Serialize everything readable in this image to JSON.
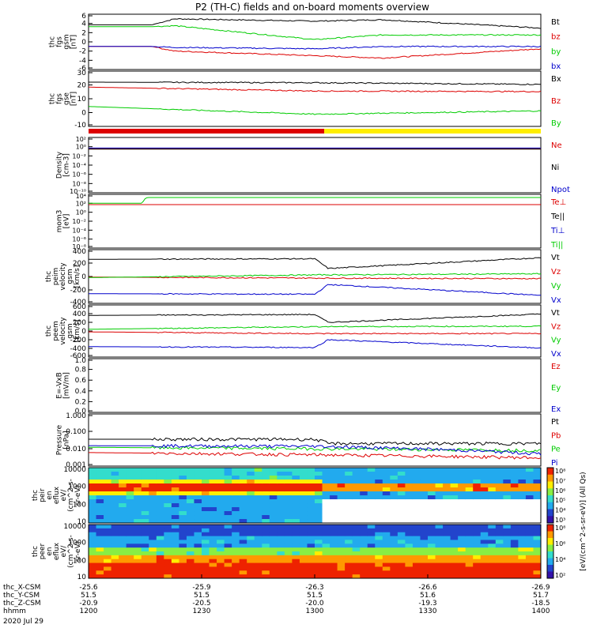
{
  "title": "P2 (TH-C) fields and on-board moments overview",
  "colors": {
    "black": "#000000",
    "red": "#dd0000",
    "green": "#00cc00",
    "blue": "#0000cc",
    "yellow": "#ffee00"
  },
  "chart_data": [
    {
      "type": "line",
      "id": "fgs_gsm",
      "ylabel": [
        "thc",
        "fgs",
        "gsm",
        "[nT]"
      ],
      "ylim": [
        -6,
        6
      ],
      "yticks": [
        6,
        4,
        2,
        0,
        -2,
        -4,
        -6
      ],
      "legend": [
        "Bt",
        "bz",
        "by",
        "bx"
      ],
      "series": [
        {
          "name": "Bt",
          "color": "black",
          "x": [
            1200,
            1228,
            1238,
            1300,
            1330,
            1400
          ],
          "values": [
            3.7,
            3.7,
            5.0,
            4.5,
            4.8,
            3.0
          ]
        },
        {
          "name": "bz",
          "color": "red",
          "x": [
            1200,
            1228,
            1238,
            1300,
            1330,
            1400
          ],
          "values": [
            -1,
            -1,
            -2,
            -3,
            -3.5,
            -1.5
          ]
        },
        {
          "name": "by",
          "color": "green",
          "x": [
            1200,
            1228,
            1238,
            1300,
            1330,
            1400
          ],
          "values": [
            3.3,
            3.3,
            3.5,
            0.5,
            1.5,
            1.5
          ]
        },
        {
          "name": "bx",
          "color": "blue",
          "x": [
            1200,
            1228,
            1238,
            1300,
            1330,
            1400
          ],
          "values": [
            -1,
            -1,
            -1.2,
            -1.5,
            -1,
            -1
          ]
        }
      ]
    },
    {
      "type": "line",
      "id": "fgs_gse",
      "ylabel": [
        "thc",
        "fgs",
        "gse",
        "[nT]"
      ],
      "ylim": [
        -20,
        30
      ],
      "yticks": [
        30,
        20,
        10,
        0,
        -10
      ],
      "legend": [
        "Bx",
        "Bz",
        "By"
      ],
      "series": [
        {
          "name": "Bx",
          "color": "black",
          "x": [
            1200,
            1300,
            1400
          ],
          "values": [
            20,
            19.5,
            18
          ]
        },
        {
          "name": "Bz",
          "color": "red",
          "x": [
            1200,
            1300,
            1400
          ],
          "values": [
            15.5,
            12,
            11.5
          ]
        },
        {
          "name": "By",
          "color": "green",
          "x": [
            1200,
            1300,
            1400
          ],
          "values": [
            -2,
            -9,
            -6
          ]
        }
      ]
    },
    {
      "type": "line",
      "id": "density",
      "ylabel": [
        "Density",
        "[cm-3]"
      ],
      "yscale": "log",
      "yticks": [
        "10²",
        "10⁰",
        "10⁻²",
        "10⁻⁴",
        "10⁻⁶",
        "10⁻⁸",
        "10⁻¹⁰"
      ],
      "legend": [
        "Ne",
        "Ni",
        "Npot"
      ],
      "series": [
        {
          "name": "Ne",
          "color": "red",
          "x": [
            1200,
            1400
          ],
          "values": [
            0.4,
            0.4
          ]
        },
        {
          "name": "Ni",
          "color": "black",
          "x": [
            1200,
            1400
          ],
          "values": [
            0.3,
            0.3
          ]
        },
        {
          "name": "Npot",
          "color": "blue",
          "x": [
            1200,
            1400
          ],
          "values": [
            0.5,
            0.5
          ]
        }
      ]
    },
    {
      "type": "line",
      "id": "temp",
      "ylabel": [
        "mom3",
        "[eV]"
      ],
      "yscale": "log",
      "yticks": [
        "10⁴",
        "10²",
        "10⁰",
        "10⁻²",
        "10⁻⁴",
        "10⁻⁶",
        "10⁻⁸"
      ],
      "legend": [
        "Te⊥",
        "Te||",
        "Ti⊥",
        "Ti||"
      ],
      "series": [
        {
          "name": "Te⊥",
          "color": "red",
          "x": [
            1200,
            1400
          ],
          "values": [
            50,
            50
          ]
        },
        {
          "name": "Ti||",
          "color": "green",
          "x": [
            1200,
            1224,
            1226,
            1400
          ],
          "values": [
            100,
            100,
            2000,
            2000
          ]
        }
      ]
    },
    {
      "type": "line",
      "id": "peim",
      "ylabel": [
        "thc",
        "peim",
        "velocity",
        "gsm",
        "[km/s]"
      ],
      "ylim": [
        -500,
        500
      ],
      "yticks": [
        400,
        200,
        0,
        -200,
        -400
      ],
      "legend": [
        "Vt",
        "Vz",
        "Vy",
        "Vx"
      ],
      "series": [
        {
          "name": "Vt",
          "color": "black",
          "x": [
            1200,
            1300,
            1306,
            1400
          ],
          "values": [
            320,
            330,
            150,
            350
          ]
        },
        {
          "name": "Vz",
          "color": "red",
          "x": [
            1200,
            1300,
            1400
          ],
          "values": [
            -10,
            -30,
            -40
          ]
        },
        {
          "name": "Vy",
          "color": "green",
          "x": [
            1200,
            1300,
            1400
          ],
          "values": [
            -20,
            30,
            50
          ]
        },
        {
          "name": "Vx",
          "color": "blue",
          "x": [
            1200,
            1300,
            1306,
            1400
          ],
          "values": [
            -320,
            -330,
            -150,
            -350
          ]
        }
      ]
    },
    {
      "type": "line",
      "id": "peem",
      "ylabel": [
        "thc",
        "peem",
        "velocity",
        "gsm",
        "[km/s]"
      ],
      "ylim": [
        -600,
        600
      ],
      "yticks": [
        600,
        400,
        200,
        0,
        -200,
        -400,
        -600
      ],
      "legend": [
        "Vt",
        "Vz",
        "Vy",
        "Vx"
      ],
      "series": [
        {
          "name": "Vt",
          "color": "black",
          "x": [
            1200,
            1300,
            1306,
            1400
          ],
          "values": [
            360,
            380,
            200,
            390
          ]
        },
        {
          "name": "Vz",
          "color": "red",
          "x": [
            1200,
            1300,
            1400
          ],
          "values": [
            -20,
            -60,
            -60
          ]
        },
        {
          "name": "Vy",
          "color": "green",
          "x": [
            1200,
            1300,
            1400
          ],
          "values": [
            40,
            100,
            110
          ]
        },
        {
          "name": "Vx",
          "color": "blue",
          "x": [
            1200,
            1300,
            1306,
            1400
          ],
          "values": [
            -360,
            -380,
            -200,
            -390
          ]
        }
      ]
    },
    {
      "type": "line",
      "id": "efield",
      "ylabel": [
        "E=-VxB",
        "[mV/m]"
      ],
      "ylim": [
        0,
        1
      ],
      "yticks": [
        "1.0",
        "0.8",
        "0.6",
        "0.4",
        "0.2",
        "0.0"
      ],
      "legend": [
        "Ez",
        "Ey",
        "Ex"
      ],
      "series": []
    },
    {
      "type": "line",
      "id": "pressure",
      "ylabel": [
        "Pressure",
        "[nPa]"
      ],
      "yscale": "log",
      "yticks": [
        "1.000",
        "0.100",
        "0.010",
        "0.001"
      ],
      "legend": [
        "Pt",
        "Pb",
        "Pe",
        "Pi"
      ],
      "series": [
        {
          "name": "Pt",
          "color": "black",
          "x": [
            1200,
            1300,
            1306,
            1400
          ],
          "values": [
            0.035,
            0.035,
            0.02,
            0.02
          ]
        },
        {
          "name": "Pb",
          "color": "red",
          "x": [
            1200,
            1400
          ],
          "values": [
            0.006,
            0.003
          ]
        },
        {
          "name": "Pe",
          "color": "green",
          "x": [
            1200,
            1300,
            1400
          ],
          "values": [
            0.012,
            0.01,
            0.008
          ]
        },
        {
          "name": "Pi",
          "color": "blue",
          "x": [
            1200,
            1300,
            1400
          ],
          "values": [
            0.015,
            0.014,
            0.005
          ]
        }
      ]
    },
    {
      "type": "heatmap",
      "id": "peir",
      "ylabel": [
        "thc",
        "peir",
        "en",
        "eflux",
        "eV/",
        "(cm^2-s-",
        "sr-eV)"
      ],
      "yticks": [
        "10000",
        "1000",
        "100",
        "10"
      ],
      "colorbar": [
        "10⁸",
        "10⁷",
        "10⁶",
        "10⁵",
        "10⁴",
        "10³"
      ]
    },
    {
      "type": "heatmap",
      "id": "peer",
      "ylabel": [
        "thc",
        "peer",
        "en",
        "eflux",
        "eV/",
        "(cm^2-s-",
        "sr-eV)"
      ],
      "yticks": [
        "10000",
        "1000",
        "100",
        "10"
      ],
      "colorbar": [
        "10⁸",
        "10⁶",
        "10⁴",
        "10²"
      ]
    }
  ],
  "colorbar_label": "[eV/(cm^2-s-sr-eV)] (All Qs)",
  "xaxis": {
    "rows": [
      {
        "label": "thc_X-CSM",
        "values": [
          "-25.6",
          "-25.9",
          "-26.3",
          "-26.6",
          "-26.9"
        ]
      },
      {
        "label": "thc_Y-CSM",
        "values": [
          "51.5",
          "51.5",
          "51.5",
          "51.6",
          "51.7"
        ]
      },
      {
        "label": "thc_Z-CSM",
        "values": [
          "-20.9",
          "-20.5",
          "-20.0",
          "-19.3",
          "-18.5"
        ]
      },
      {
        "label": "hhmm",
        "values": [
          "1200",
          "1230",
          "1300",
          "1330",
          "1400"
        ]
      }
    ],
    "date": "2020 Jul 29"
  }
}
